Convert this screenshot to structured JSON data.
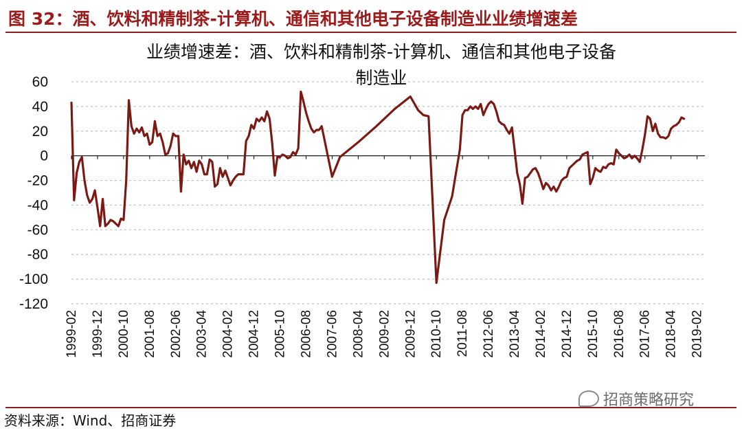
{
  "figure": {
    "title": "图 32：酒、饮料和精制茶-计算机、通信和其他电子设备制造业业绩增速差",
    "source": "资料来源：Wind、招商证券",
    "watermark": "招商策略研究",
    "watermark_icon": "wechat-icon"
  },
  "colors": {
    "accent": "#8b2020",
    "line": "#7b1a14",
    "grid": "#bfbfbf"
  },
  "chart_data": {
    "type": "line",
    "title_line1": "业绩增速差：酒、饮料和精制茶-计算机、通信和其他电子设备",
    "title_line2": "制造业",
    "xlabel": "",
    "ylabel": "",
    "ylim": [
      -120,
      60
    ],
    "yticks": [
      60,
      40,
      20,
      0,
      -20,
      -40,
      -60,
      -80,
      -100,
      -120
    ],
    "grid": "horizontal-dashed",
    "legend": "none",
    "x_tick_labels": [
      "1999-02",
      "1999-12",
      "2000-10",
      "2001-08",
      "2002-06",
      "2003-04",
      "2004-02",
      "2004-12",
      "2005-10",
      "2006-08",
      "2007-06",
      "2008-04",
      "2009-02",
      "2009-12",
      "2010-10",
      "2011-08",
      "2012-06",
      "2013-04",
      "2014-02",
      "2014-12",
      "2015-10",
      "2016-08",
      "2017-06",
      "2018-04",
      "2019-02"
    ],
    "x_start": "1999-02",
    "x_end": "2019-05",
    "series": [
      {
        "values": [
          [
            "1999-02",
            43
          ],
          [
            "1999-03",
            -36
          ],
          [
            "1999-04",
            -14
          ],
          [
            "1999-05",
            -5
          ],
          [
            "1999-06",
            -1
          ],
          [
            "1999-07",
            -20
          ],
          [
            "1999-08",
            -32
          ],
          [
            "1999-09",
            -38
          ],
          [
            "1999-10",
            -35
          ],
          [
            "1999-11",
            -28
          ],
          [
            "1999-12",
            -42
          ],
          [
            "2000-01",
            -57
          ],
          [
            "2000-02",
            -35
          ],
          [
            "2000-03",
            -57
          ],
          [
            "2000-04",
            -55
          ],
          [
            "2000-05",
            -52
          ],
          [
            "2000-06",
            -53
          ],
          [
            "2000-07",
            -55
          ],
          [
            "2000-08",
            -57
          ],
          [
            "2000-09",
            -51
          ],
          [
            "2000-10",
            -52
          ],
          [
            "2000-11",
            -20
          ],
          [
            "2000-12",
            45
          ],
          [
            "2001-01",
            24
          ],
          [
            "2001-02",
            18
          ],
          [
            "2001-03",
            22
          ],
          [
            "2001-04",
            19
          ],
          [
            "2001-05",
            23
          ],
          [
            "2001-06",
            16
          ],
          [
            "2001-07",
            18
          ],
          [
            "2001-08",
            9
          ],
          [
            "2001-09",
            11
          ],
          [
            "2001-10",
            28
          ],
          [
            "2001-11",
            16
          ],
          [
            "2001-12",
            18
          ],
          [
            "2002-01",
            11
          ],
          [
            "2002-02",
            1
          ],
          [
            "2002-03",
            2
          ],
          [
            "2002-04",
            8
          ],
          [
            "2002-05",
            18
          ],
          [
            "2002-06",
            16
          ],
          [
            "2002-07",
            16
          ],
          [
            "2002-08",
            -29
          ],
          [
            "2002-09",
            1
          ],
          [
            "2002-10",
            -7
          ],
          [
            "2002-11",
            -4
          ],
          [
            "2002-12",
            -10
          ],
          [
            "2003-01",
            -5
          ],
          [
            "2003-02",
            -13
          ],
          [
            "2003-03",
            -4
          ],
          [
            "2003-04",
            -7
          ],
          [
            "2003-05",
            -15
          ],
          [
            "2003-06",
            -15
          ],
          [
            "2003-07",
            -3
          ],
          [
            "2003-08",
            -5
          ],
          [
            "2003-09",
            -25
          ],
          [
            "2003-10",
            -23
          ],
          [
            "2003-11",
            -10
          ],
          [
            "2003-12",
            -17
          ],
          [
            "2004-01",
            -12
          ],
          [
            "2004-02",
            -18
          ],
          [
            "2004-03",
            -24
          ],
          [
            "2004-04",
            -20
          ],
          [
            "2004-05",
            -17
          ],
          [
            "2004-06",
            -15
          ],
          [
            "2004-07",
            -15
          ],
          [
            "2004-08",
            -15
          ],
          [
            "2004-09",
            12
          ],
          [
            "2004-10",
            16
          ],
          [
            "2004-11",
            25
          ],
          [
            "2004-12",
            22
          ],
          [
            "2005-01",
            30
          ],
          [
            "2005-02",
            28
          ],
          [
            "2005-03",
            31
          ],
          [
            "2005-04",
            28
          ],
          [
            "2005-05",
            36
          ],
          [
            "2005-06",
            30
          ],
          [
            "2005-07",
            10
          ],
          [
            "2005-08",
            -16
          ],
          [
            "2005-09",
            -1
          ],
          [
            "2005-10",
            -1
          ],
          [
            "2005-11",
            1
          ],
          [
            "2005-12",
            0
          ],
          [
            "2006-01",
            -2
          ],
          [
            "2006-02",
            -1
          ],
          [
            "2006-03",
            3
          ],
          [
            "2006-04",
            1
          ],
          [
            "2006-05",
            6
          ],
          [
            "2006-06",
            52
          ],
          [
            "2006-07",
            44
          ],
          [
            "2006-08",
            35
          ],
          [
            "2006-09",
            28
          ],
          [
            "2006-10",
            22
          ],
          [
            "2006-11",
            19
          ],
          [
            "2006-12",
            21
          ],
          [
            "2007-01",
            21
          ],
          [
            "2007-02",
            24
          ],
          [
            "2007-06",
            -17
          ],
          [
            "2007-09",
            -1
          ],
          [
            "2008-04",
            11
          ],
          [
            "2008-11",
            24
          ],
          [
            "2009-06",
            38
          ],
          [
            "2009-12",
            48
          ],
          [
            "2010-03",
            37
          ],
          [
            "2010-05",
            33
          ],
          [
            "2010-07",
            32
          ],
          [
            "2010-10",
            -103
          ],
          [
            "2011-01",
            -52
          ],
          [
            "2011-04",
            -33
          ],
          [
            "2011-07",
            5
          ],
          [
            "2011-08",
            33
          ],
          [
            "2011-09",
            37
          ],
          [
            "2011-10",
            37
          ],
          [
            "2011-11",
            40
          ],
          [
            "2011-12",
            38
          ],
          [
            "2012-01",
            40
          ],
          [
            "2012-02",
            38
          ],
          [
            "2012-03",
            42
          ],
          [
            "2012-04",
            33
          ],
          [
            "2012-05",
            38
          ],
          [
            "2012-06",
            42
          ],
          [
            "2012-07",
            44
          ],
          [
            "2012-08",
            42
          ],
          [
            "2012-09",
            36
          ],
          [
            "2012-10",
            28
          ],
          [
            "2012-11",
            26
          ],
          [
            "2012-12",
            25
          ],
          [
            "2013-01",
            21
          ],
          [
            "2013-02",
            18
          ],
          [
            "2013-03",
            23
          ],
          [
            "2013-04",
            5
          ],
          [
            "2013-05",
            -14
          ],
          [
            "2013-06",
            -23
          ],
          [
            "2013-07",
            -39
          ],
          [
            "2013-08",
            -18
          ],
          [
            "2013-09",
            -17
          ],
          [
            "2013-10",
            -14
          ],
          [
            "2013-11",
            -11
          ],
          [
            "2013-12",
            -10
          ],
          [
            "2014-01",
            -14
          ],
          [
            "2014-02",
            -20
          ],
          [
            "2014-03",
            -27
          ],
          [
            "2014-04",
            -22
          ],
          [
            "2014-05",
            -24
          ],
          [
            "2014-06",
            -28
          ],
          [
            "2014-07",
            -25
          ],
          [
            "2014-08",
            -29
          ],
          [
            "2014-09",
            -25
          ],
          [
            "2014-10",
            -20
          ],
          [
            "2014-11",
            -18
          ],
          [
            "2014-12",
            -17
          ],
          [
            "2015-01",
            -10
          ],
          [
            "2015-02",
            -8
          ],
          [
            "2015-03",
            -6
          ],
          [
            "2015-04",
            -4
          ],
          [
            "2015-05",
            -3
          ],
          [
            "2015-06",
            1
          ],
          [
            "2015-07",
            2
          ],
          [
            "2015-08",
            3
          ],
          [
            "2015-09",
            -23
          ],
          [
            "2015-10",
            -18
          ],
          [
            "2015-11",
            -10
          ],
          [
            "2015-12",
            -12
          ],
          [
            "2016-01",
            -13
          ],
          [
            "2016-02",
            -9
          ],
          [
            "2016-03",
            -10
          ],
          [
            "2016-04",
            -7
          ],
          [
            "2016-05",
            -6
          ],
          [
            "2016-06",
            -7
          ],
          [
            "2016-07",
            5
          ],
          [
            "2016-08",
            2
          ],
          [
            "2016-09",
            0
          ],
          [
            "2016-10",
            -2
          ],
          [
            "2016-11",
            -1
          ],
          [
            "2016-12",
            1
          ],
          [
            "2017-01",
            -2
          ],
          [
            "2017-02",
            0
          ],
          [
            "2017-03",
            -2
          ],
          [
            "2017-04",
            -5
          ],
          [
            "2017-05",
            5
          ],
          [
            "2017-06",
            17
          ],
          [
            "2017-07",
            32
          ],
          [
            "2017-08",
            30
          ],
          [
            "2017-09",
            20
          ],
          [
            "2017-10",
            26
          ],
          [
            "2017-11",
            18
          ],
          [
            "2017-12",
            15
          ],
          [
            "2018-01",
            15
          ],
          [
            "2018-02",
            14
          ],
          [
            "2018-03",
            16
          ],
          [
            "2018-04",
            22
          ],
          [
            "2018-05",
            24
          ],
          [
            "2018-06",
            25
          ],
          [
            "2018-07",
            27
          ],
          [
            "2018-08",
            31
          ],
          [
            "2018-09",
            30
          ]
        ]
      }
    ]
  }
}
